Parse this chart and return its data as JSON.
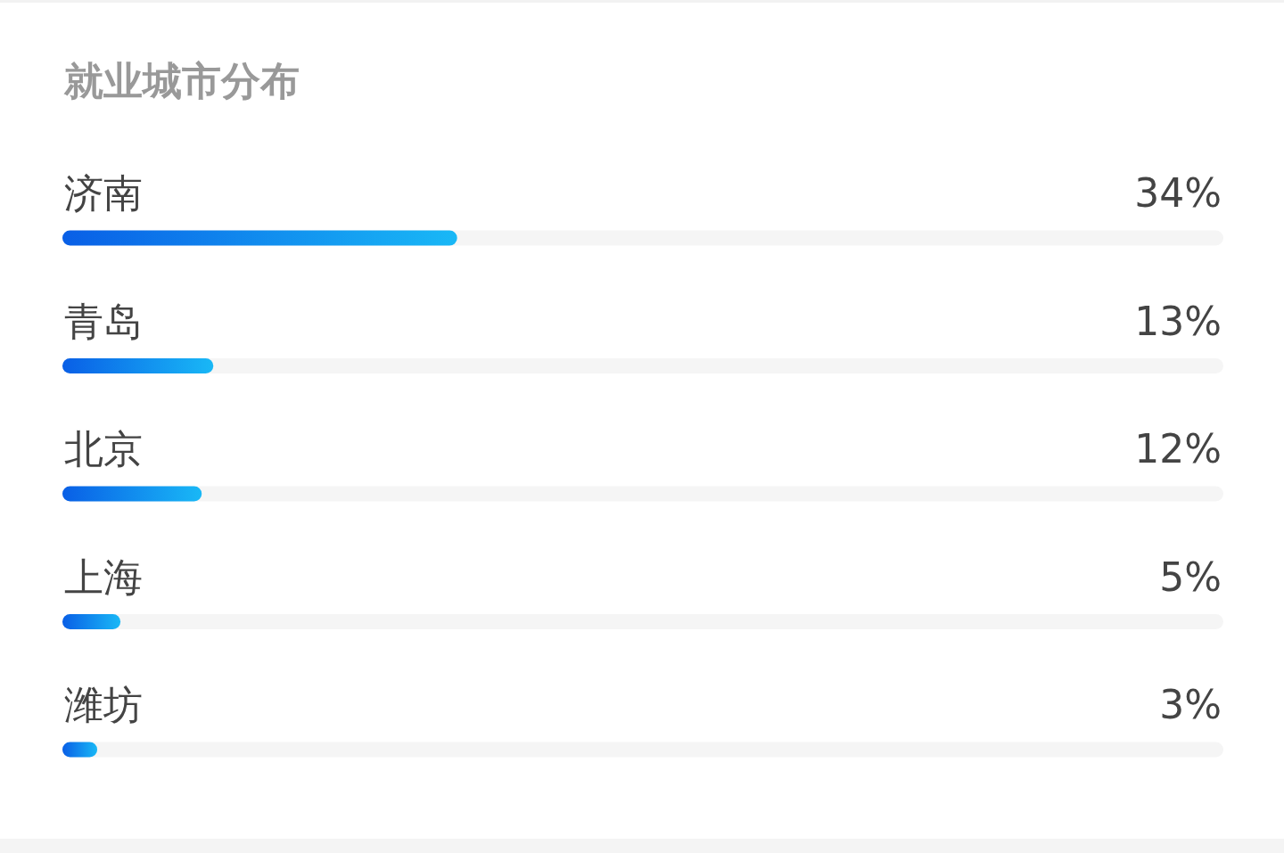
{
  "chart_data": {
    "type": "bar",
    "orientation": "horizontal",
    "title": "就业城市分布",
    "categories": [
      "济南",
      "青岛",
      "北京",
      "上海",
      "潍坊"
    ],
    "values": [
      34,
      13,
      12,
      5,
      3
    ],
    "value_labels": [
      "34%",
      "13%",
      "12%",
      "5%",
      "3%"
    ],
    "color": "#0a84f5",
    "xlim": [
      0,
      100
    ],
    "tick_labels": "y"
  }
}
